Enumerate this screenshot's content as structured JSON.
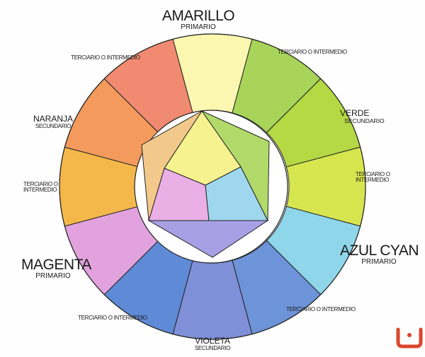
{
  "labels": {
    "amarillo": {
      "name": "AMARILLO",
      "type": "PRIMARIO"
    },
    "verde": {
      "name": "VERDE",
      "type": "SECUNDARIO"
    },
    "azul_cyan": {
      "name": "AZUL CYAN",
      "type": "PRIMARIO"
    },
    "violeta": {
      "name": "VIOLETA",
      "type": "SECUNDARIO"
    },
    "magenta": {
      "name": "MAGENTA",
      "type": "PRIMARIO"
    },
    "naranja": {
      "name": "NARANJA",
      "type": "SECUNDARIO"
    },
    "terciario_top_right": "TERCIARIO O INTERMEDIO",
    "terciario_right_1": "TERCIARIO O",
    "terciario_right_2": "INTERMEDIO",
    "terciario_bottom_right": "TERCIARIO O INTERMEDIO",
    "terciario_bottom_left": "TERCIARIO O INTERMEDIO",
    "terciario_left_1": "TERCIARIO O",
    "terciario_left_2": "INTERMEDIO",
    "terciario_top_left": "TERCIARIO O INTERMEDIO"
  },
  "wheel_segments": [
    {
      "name": "amarillo",
      "color": "#fbf7b0"
    },
    {
      "name": "amarillo-verde",
      "color": "#a8d45a"
    },
    {
      "name": "verde",
      "color": "#b5d845"
    },
    {
      "name": "verde-amarillo",
      "color": "#d7e64f"
    },
    {
      "name": "azul-cyan",
      "color": "#8fd6ea"
    },
    {
      "name": "azul",
      "color": "#6d93d8"
    },
    {
      "name": "violeta",
      "color": "#7f8fd8"
    },
    {
      "name": "azul-violeta",
      "color": "#5f8ad6"
    },
    {
      "name": "magenta",
      "color": "#e2a2de"
    },
    {
      "name": "naranja-amarillo",
      "color": "#f4b84a"
    },
    {
      "name": "naranja",
      "color": "#f39a5c"
    },
    {
      "name": "rojo-naranja",
      "color": "#f08a70"
    }
  ],
  "inner_regions": [
    {
      "name": "amarillo",
      "color": "#f6f290"
    },
    {
      "name": "magenta",
      "color": "#eab0e6"
    },
    {
      "name": "cyan",
      "color": "#9fd8ee"
    },
    {
      "name": "naranja",
      "color": "#f2c98a"
    },
    {
      "name": "verde",
      "color": "#b2da6a"
    },
    {
      "name": "violeta",
      "color": "#a7a0e4"
    }
  ],
  "logo_color": "#d9472b"
}
